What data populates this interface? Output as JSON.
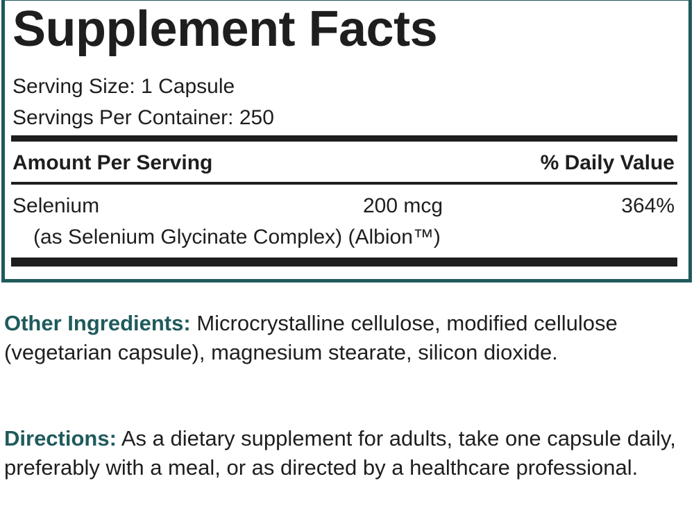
{
  "facts": {
    "title": "Supplement Facts",
    "serving_size": "Serving Size: 1 Capsule",
    "servings_per_container": "Servings Per Container: 250",
    "amount_header": "Amount Per Serving",
    "dv_header": "% Daily Value",
    "rows": [
      {
        "name": "Selenium",
        "amount": "200 mcg",
        "dv": "364%",
        "detail": "(as Selenium Glycinate Complex) (Albion™)"
      }
    ]
  },
  "other": {
    "label": "Other Ingredients:",
    "text": " Microcrystalline cellulose, modified cellulose (vegetarian capsule), magnesium stearate, silicon dioxide."
  },
  "directions": {
    "label": "Directions:",
    "text": " As a dietary supplement for adults, take one capsule daily, preferably with a meal, or as directed by a healthcare professional."
  },
  "colors": {
    "accent": "#1f5a5c",
    "text": "#1e1e1e"
  }
}
